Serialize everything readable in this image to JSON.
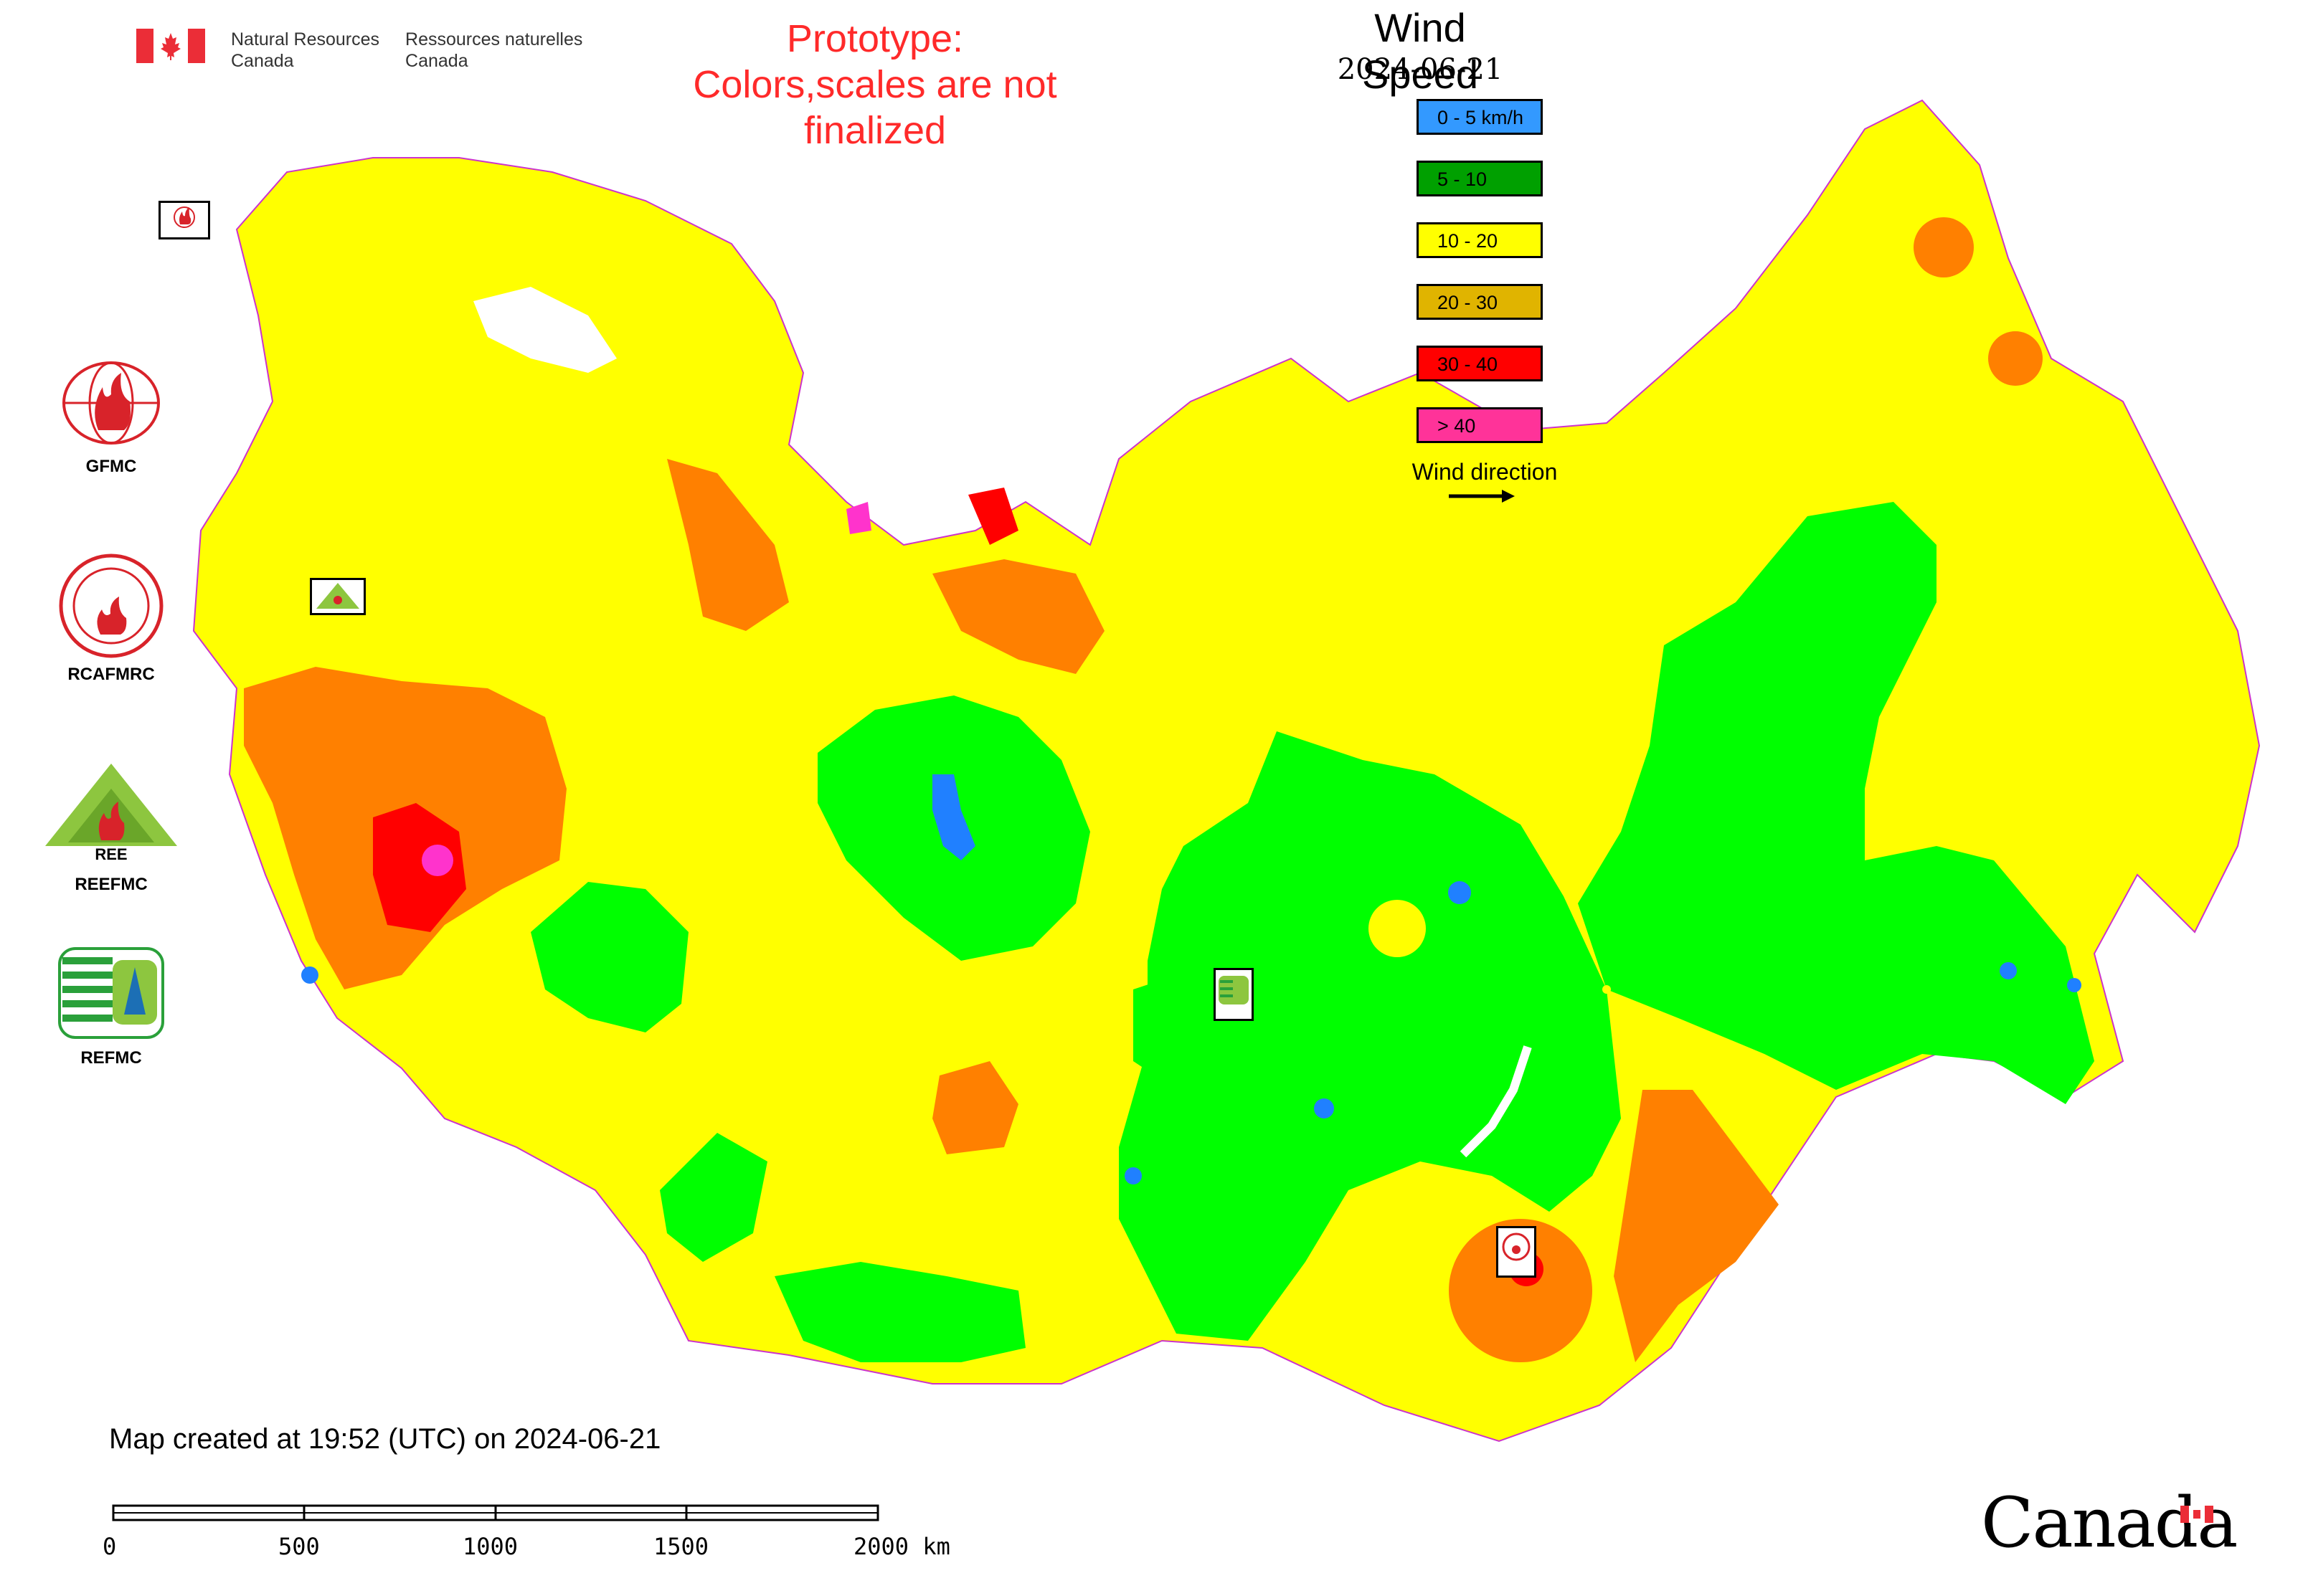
{
  "header": {
    "dept_en_line1": "Natural Resources",
    "dept_en_line2": "Canada",
    "dept_fr_line1": "Ressources naturelles",
    "dept_fr_line2": "Canada"
  },
  "notice": {
    "line1": "Prototype:",
    "line2": "Colors,scales are not finalized",
    "color": "#ff2a2a"
  },
  "legend": {
    "title": "Wind Speed",
    "date": "2024-06-21",
    "classes": [
      {
        "label": "0 - 5 km/h",
        "color": "#3399ff"
      },
      {
        "label": "5 - 10",
        "color": "#00a000"
      },
      {
        "label": "10 - 20",
        "color": "#ffff00"
      },
      {
        "label": "20 - 30",
        "color": "#e0b400"
      },
      {
        "label": "30 - 40",
        "color": "#ff0000"
      },
      {
        "label": "> 40",
        "color": "#ff3399"
      }
    ],
    "wind_direction_label": "Wind direction"
  },
  "map_colors": {
    "base": "#ffff00",
    "green": "#00ff00",
    "orange": "#ff8000",
    "red": "#ff0000",
    "magenta": "#ff33cc",
    "blue": "#2080ff",
    "water": "#ffffff",
    "boundary": "#cc33cc"
  },
  "agencies": [
    {
      "id": "gfmc",
      "label": "GFMC"
    },
    {
      "id": "rcafmrc",
      "label": "RCAFMRC"
    },
    {
      "id": "reefmc",
      "label": "REEFMC"
    },
    {
      "id": "refmc",
      "label": "REFMC"
    }
  ],
  "badges": {
    "gfmc_small": "GFMC",
    "reefmc_small": "REEFMC",
    "refmc_small": "REFMC",
    "rcafmrc_small": "RCAFMRC"
  },
  "footer": {
    "created_text": "Map created at 19:52 (UTC) on 2024-06-21",
    "scale_ticks": [
      "0",
      "500",
      "1000",
      "1500",
      "2000 km"
    ],
    "wordmark": "Canada"
  }
}
